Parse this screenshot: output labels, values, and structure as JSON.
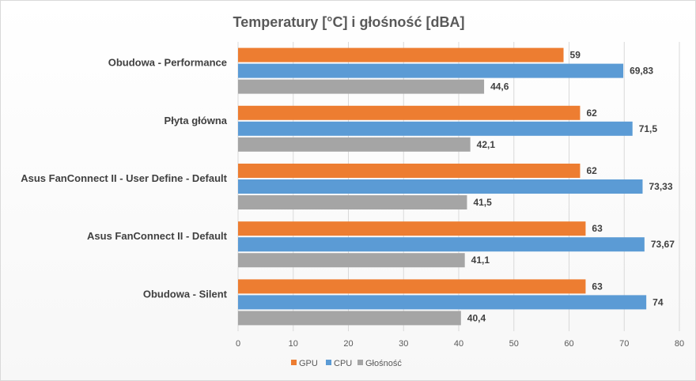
{
  "chart_data": {
    "type": "bar",
    "orientation": "horizontal",
    "title": "Temperatury  [°C] i głośność  [dBA]",
    "categories": [
      "Obudowa - Performance",
      "Płyta główna",
      "Asus FanConnect II - User Define - Default",
      "Asus FanConnect II - Default",
      "Obudowa - Silent"
    ],
    "series": [
      {
        "name": "GPU",
        "color": "#ed7d31",
        "values": [
          59,
          62,
          62,
          63,
          63
        ],
        "labels": [
          "59",
          "62",
          "62",
          "63",
          "63"
        ]
      },
      {
        "name": "CPU",
        "color": "#5b9bd5",
        "values": [
          69.83,
          71.5,
          73.33,
          73.67,
          74
        ],
        "labels": [
          "69,83",
          "71,5",
          "73,33",
          "73,67",
          "74"
        ]
      },
      {
        "name": "Głośność",
        "color": "#a5a5a5",
        "values": [
          44.6,
          42.1,
          41.5,
          41.1,
          40.4
        ],
        "labels": [
          "44,6",
          "42,1",
          "41,5",
          "41,1",
          "40,4"
        ]
      }
    ],
    "xlim": [
      0,
      80
    ],
    "xticks": [
      "0",
      "10",
      "20",
      "30",
      "40",
      "50",
      "60",
      "70",
      "80"
    ],
    "grid": true,
    "legend_position": "bottom"
  }
}
